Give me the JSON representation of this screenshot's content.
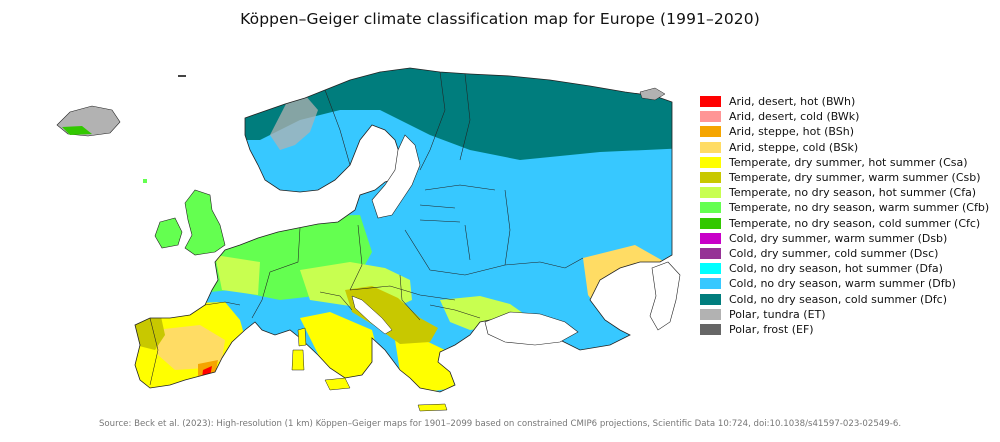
{
  "title": "Köppen–Geiger climate classification map for Europe (1991–2020)",
  "legend": [
    {
      "label": "Arid, desert, hot (BWh)",
      "color": "#ff0000"
    },
    {
      "label": "Arid, desert, cold (BWk)",
      "color": "#ff9696"
    },
    {
      "label": "Arid, steppe, hot (BSh)",
      "color": "#f5a500"
    },
    {
      "label": "Arid, steppe, cold (BSk)",
      "color": "#ffdc64"
    },
    {
      "label": "Temperate, dry summer, hot summer (Csa)",
      "color": "#ffff00"
    },
    {
      "label": "Temperate, dry summer, warm summer (Csb)",
      "color": "#c8c800"
    },
    {
      "label": "Temperate, no dry season, hot summer (Cfa)",
      "color": "#c8ff50"
    },
    {
      "label": "Temperate, no dry season, warm summer (Cfb)",
      "color": "#64ff50"
    },
    {
      "label": "Temperate, no dry season, cold summer (Cfc)",
      "color": "#32c800"
    },
    {
      "label": "Cold, dry summer, warm summer (Dsb)",
      "color": "#c800c8"
    },
    {
      "label": "Cold, dry summer, cold summer (Dsc)",
      "color": "#963296"
    },
    {
      "label": "Cold, no dry season, hot summer (Dfa)",
      "color": "#00ffff"
    },
    {
      "label": "Cold, no dry season, warm summer (Dfb)",
      "color": "#37c8ff"
    },
    {
      "label": "Cold, no dry season, cold summer (Dfc)",
      "color": "#007d7d"
    },
    {
      "label": "Polar, tundra (ET)",
      "color": "#b2b2b2"
    },
    {
      "label": "Polar, frost (EF)",
      "color": "#666666"
    }
  ],
  "source": "Source: Beck et al. (2023): High-resolution (1 km) Köppen–Geiger maps for 1901–2099 based on constrained CMIP6 projections, Scientific Data 10:724, doi:10.1038/s41597-023-02549-6."
}
